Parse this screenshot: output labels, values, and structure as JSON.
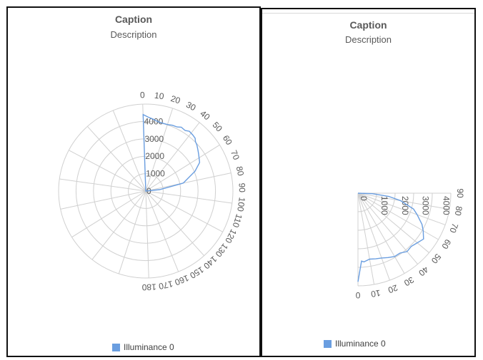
{
  "charts": [
    {
      "caption": "Caption",
      "description": "Description",
      "legend": [
        {
          "label": "Illuminance 0"
        }
      ]
    },
    {
      "caption": "Caption",
      "description": "Description",
      "legend": [
        {
          "label": "Illuminance 0"
        }
      ]
    }
  ],
  "colors": {
    "series": "#6a9ee0",
    "grid": "#d0d0d0",
    "text": "#595959"
  },
  "chart_data": [
    {
      "type": "polar-line",
      "title": "Caption",
      "subtitle": "Description",
      "angle_range": [
        0,
        180
      ],
      "angle_ticks": [
        0,
        10,
        20,
        30,
        40,
        50,
        60,
        70,
        80,
        90,
        100,
        110,
        120,
        130,
        140,
        150,
        160,
        170,
        180
      ],
      "radial_ticks": [
        0,
        1000,
        2000,
        3000,
        4000
      ],
      "radial_max": 5000,
      "grid": true,
      "legend_position": "bottom",
      "series": [
        {
          "name": "Illuminance 0",
          "points": [
            [
              0,
              0
            ],
            [
              0,
              4400
            ],
            [
              4,
              4250
            ],
            [
              8,
              4150
            ],
            [
              12,
              4050
            ],
            [
              16,
              4020
            ],
            [
              20,
              4020
            ],
            [
              24,
              4080
            ],
            [
              28,
              4100
            ],
            [
              31,
              4200
            ],
            [
              35,
              4150
            ],
            [
              38,
              4250
            ],
            [
              42,
              4200
            ],
            [
              45,
              4150
            ],
            [
              47,
              4030
            ],
            [
              50,
              3950
            ],
            [
              54,
              3800
            ],
            [
              57,
              3700
            ],
            [
              64,
              3500
            ],
            [
              70,
              3050
            ],
            [
              80,
              2200
            ],
            [
              86,
              800
            ],
            [
              90,
              0
            ]
          ]
        }
      ]
    },
    {
      "type": "polar-line",
      "title": "Caption",
      "subtitle": "Description",
      "angle_range": [
        0,
        90
      ],
      "angle_ticks": [
        0,
        10,
        20,
        30,
        40,
        50,
        60,
        70,
        80,
        90
      ],
      "radial_ticks": [
        0,
        1000,
        2000,
        3000,
        4000
      ],
      "radial_max": 4500,
      "grid": true,
      "legend_position": "bottom",
      "series": [
        {
          "name": "Illuminance 0",
          "points": [
            [
              90,
              0
            ],
            [
              88,
              700
            ],
            [
              84,
              1500
            ],
            [
              80,
              2100
            ],
            [
              74,
              2800
            ],
            [
              70,
              3050
            ],
            [
              64,
              3450
            ],
            [
              60,
              3650
            ],
            [
              55,
              3880
            ],
            [
              50,
              3750
            ],
            [
              45,
              3650
            ],
            [
              40,
              3700
            ],
            [
              35,
              3550
            ],
            [
              30,
              3550
            ],
            [
              25,
              3450
            ],
            [
              20,
              3350
            ],
            [
              15,
              3300
            ],
            [
              10,
              3250
            ],
            [
              5,
              3350
            ],
            [
              3,
              3300
            ],
            [
              0,
              4300
            ]
          ]
        }
      ]
    }
  ]
}
